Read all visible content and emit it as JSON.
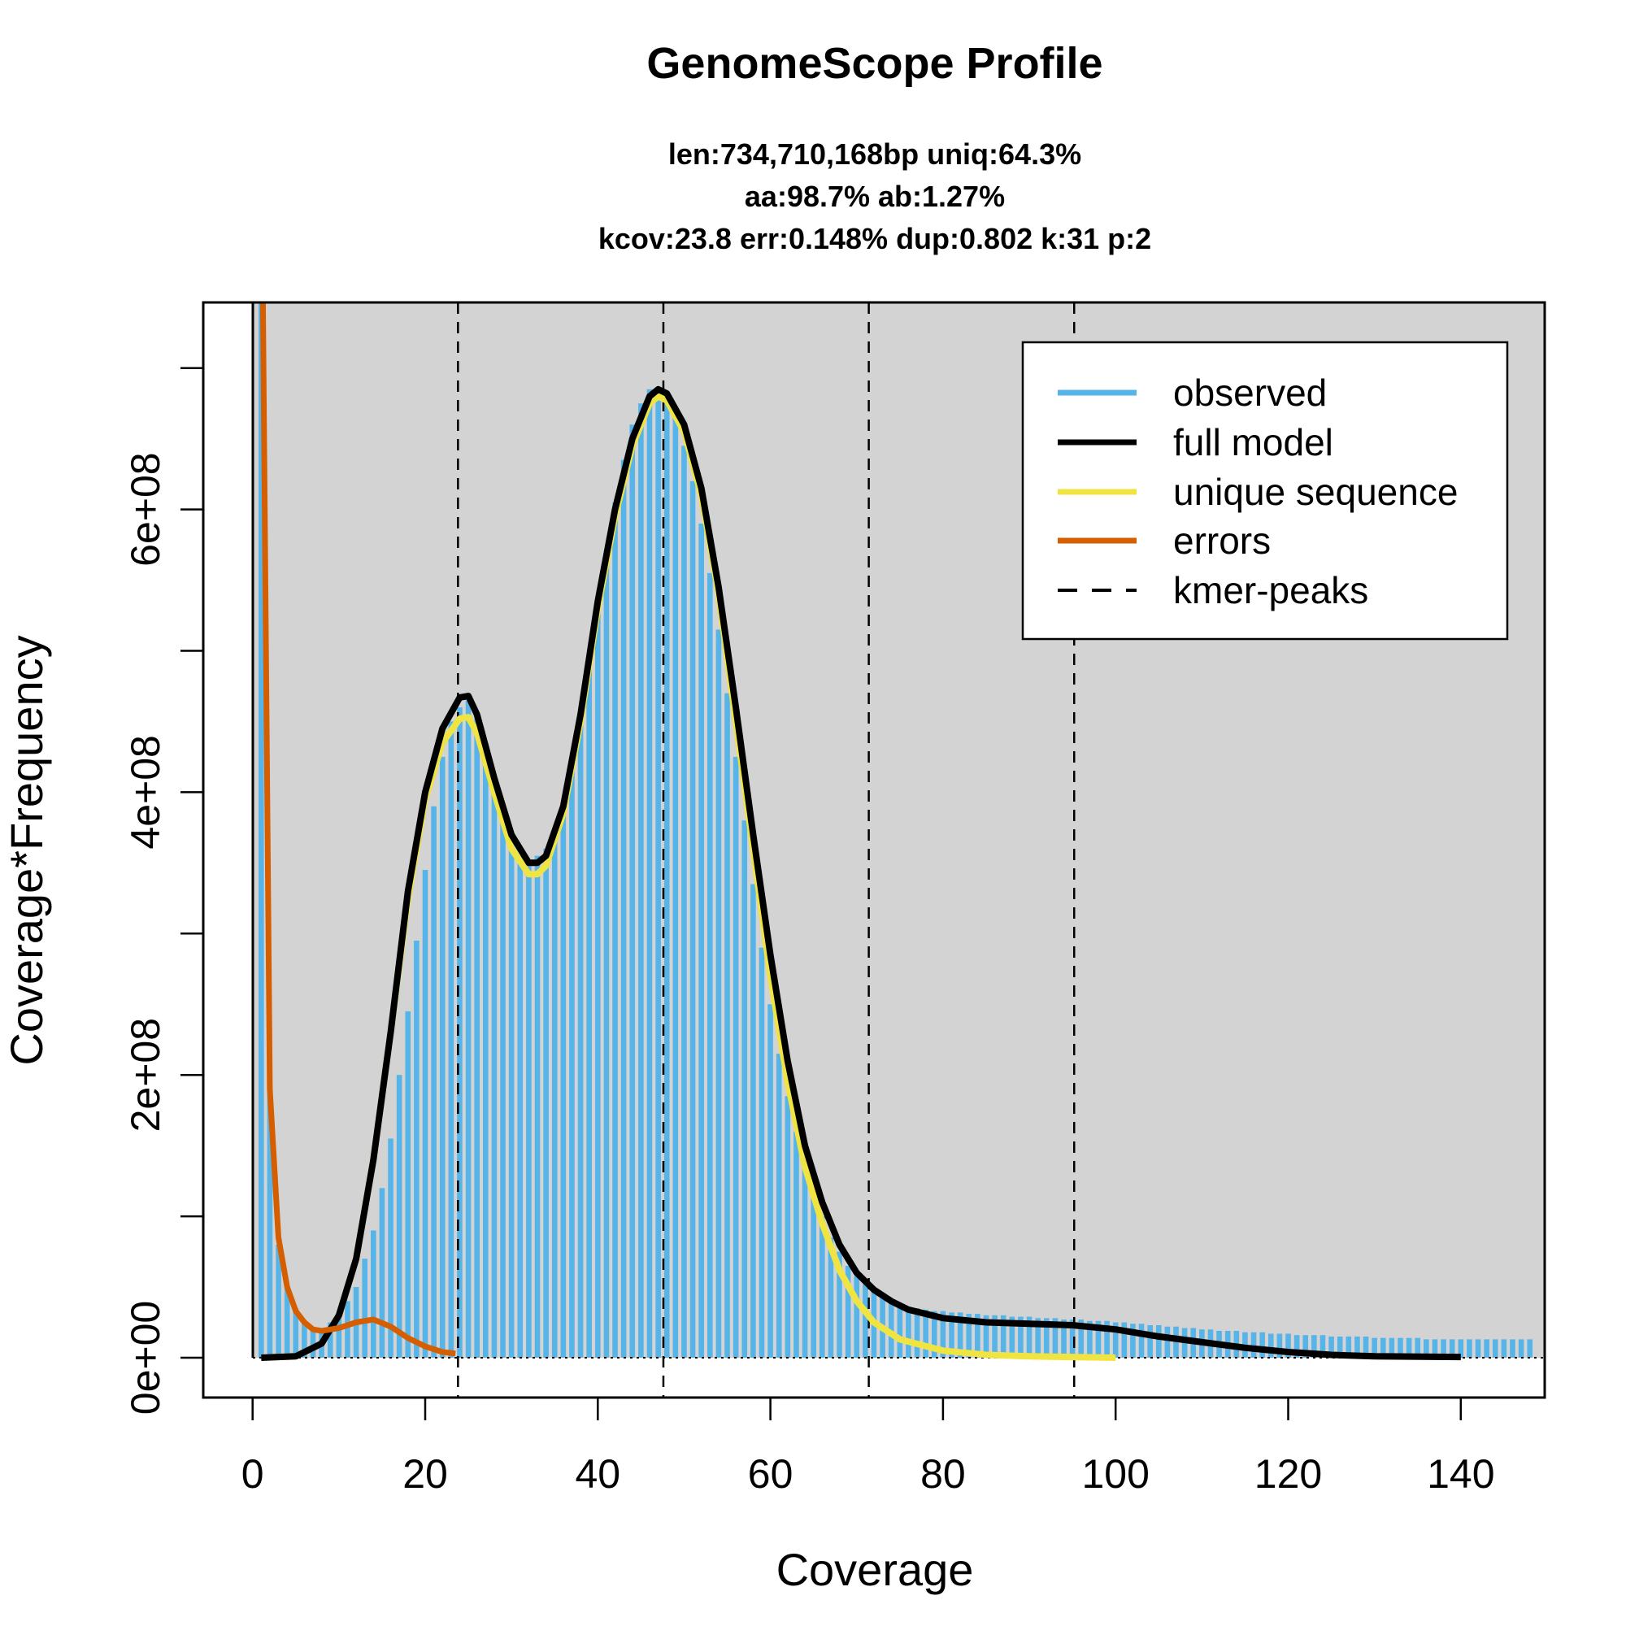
{
  "chart_data": {
    "type": "bar",
    "title": "GenomeScope Profile",
    "subtitle_lines": [
      "len:734,710,168bp uniq:64.3%",
      "aa:98.7% ab:1.27%",
      "kcov:23.8 err:0.148%  dup:0.802  k:31 p:2"
    ],
    "xlabel": "Coverage",
    "ylabel": "Coverage*Frequency",
    "xlim": [
      0,
      144
    ],
    "ylim": [
      0,
      720000000
    ],
    "x_ticks": [
      0,
      20,
      40,
      60,
      80,
      100,
      120,
      140
    ],
    "x_tick_labels": [
      "0",
      "20",
      "40",
      "60",
      "80",
      "100",
      "120",
      "140"
    ],
    "y_ticks": [
      0,
      100000000,
      200000000,
      300000000,
      400000000,
      500000000,
      600000000,
      700000000
    ],
    "y_tick_labels": [
      "0e+00",
      "",
      "2e+08",
      "",
      "4e+08",
      "",
      "6e+08",
      ""
    ],
    "y_unit": 100000000,
    "legend_position": "top-right",
    "colors": {
      "observed": "#56B4E9",
      "full_model": "#000000",
      "unique": "#F0E442",
      "errors": "#D55E00",
      "peaks": "#000000",
      "panel": "#D3D3D3"
    },
    "legend": [
      "observed",
      "full model",
      "unique sequence",
      "errors",
      "kmer-peaks"
    ],
    "kmer_peaks": [
      23.8,
      47.6,
      71.4,
      95.2
    ],
    "observed": {
      "x_start": 1,
      "values_1e8": [
        7.5,
        1.9,
        0.8,
        0.5,
        0.35,
        0.25,
        0.2,
        0.2,
        0.25,
        0.3,
        0.4,
        0.5,
        0.7,
        0.9,
        1.2,
        1.55,
        2.0,
        2.45,
        2.95,
        3.45,
        3.9,
        4.25,
        4.5,
        4.6,
        4.65,
        4.55,
        4.35,
        4.1,
        3.85,
        3.65,
        3.55,
        3.5,
        3.55,
        3.6,
        3.7,
        3.9,
        4.2,
        4.5,
        4.9,
        5.3,
        5.7,
        6.05,
        6.35,
        6.6,
        6.75,
        6.85,
        6.85,
        6.8,
        6.65,
        6.45,
        6.2,
        5.9,
        5.55,
        5.15,
        4.7,
        4.25,
        3.8,
        3.35,
        2.9,
        2.5,
        2.15,
        1.85,
        1.6,
        1.35,
        1.15,
        1.0,
        0.85,
        0.75,
        0.65,
        0.58,
        0.52,
        0.47,
        0.43,
        0.4,
        0.38,
        0.36,
        0.35,
        0.34,
        0.33,
        0.33,
        0.32,
        0.32,
        0.31,
        0.31,
        0.3,
        0.3,
        0.3,
        0.29,
        0.29,
        0.29,
        0.28,
        0.28,
        0.28,
        0.27,
        0.27,
        0.27,
        0.26,
        0.26,
        0.26,
        0.25,
        0.25,
        0.24,
        0.24,
        0.23,
        0.23,
        0.22,
        0.22,
        0.21,
        0.21,
        0.2,
        0.2,
        0.19,
        0.19,
        0.19,
        0.18,
        0.18,
        0.18,
        0.17,
        0.17,
        0.17,
        0.16,
        0.16,
        0.16,
        0.16,
        0.15,
        0.15,
        0.15,
        0.15,
        0.15,
        0.14,
        0.14,
        0.14,
        0.14,
        0.14,
        0.14,
        0.13,
        0.13,
        0.13,
        0.13,
        0.13,
        0.13,
        0.13,
        0.13,
        0.13,
        0.13,
        0.13,
        0.13,
        0.13
      ]
    },
    "full_model_1e8": [
      [
        1,
        0
      ],
      [
        5,
        0.01
      ],
      [
        8,
        0.1
      ],
      [
        10,
        0.3
      ],
      [
        12,
        0.7
      ],
      [
        14,
        1.4
      ],
      [
        16,
        2.3
      ],
      [
        18,
        3.3
      ],
      [
        20,
        4.0
      ],
      [
        22,
        4.45
      ],
      [
        24,
        4.67
      ],
      [
        25,
        4.68
      ],
      [
        26,
        4.55
      ],
      [
        28,
        4.1
      ],
      [
        30,
        3.7
      ],
      [
        32,
        3.5
      ],
      [
        33,
        3.5
      ],
      [
        34,
        3.55
      ],
      [
        36,
        3.9
      ],
      [
        38,
        4.55
      ],
      [
        40,
        5.35
      ],
      [
        42,
        6.0
      ],
      [
        44,
        6.5
      ],
      [
        46,
        6.8
      ],
      [
        47,
        6.85
      ],
      [
        48,
        6.82
      ],
      [
        50,
        6.6
      ],
      [
        52,
        6.15
      ],
      [
        54,
        5.45
      ],
      [
        56,
        4.6
      ],
      [
        58,
        3.7
      ],
      [
        60,
        2.85
      ],
      [
        62,
        2.1
      ],
      [
        64,
        1.5
      ],
      [
        66,
        1.1
      ],
      [
        68,
        0.8
      ],
      [
        70,
        0.6
      ],
      [
        72,
        0.48
      ],
      [
        74,
        0.4
      ],
      [
        76,
        0.34
      ],
      [
        80,
        0.28
      ],
      [
        85,
        0.25
      ],
      [
        90,
        0.24
      ],
      [
        95,
        0.23
      ],
      [
        100,
        0.2
      ],
      [
        105,
        0.15
      ],
      [
        110,
        0.11
      ],
      [
        115,
        0.07
      ],
      [
        120,
        0.04
      ],
      [
        125,
        0.02
      ],
      [
        130,
        0.01
      ],
      [
        140,
        0.005
      ],
      [
        150,
        0
      ]
    ],
    "unique_1e8": [
      [
        1,
        0
      ],
      [
        5,
        0.01
      ],
      [
        8,
        0.1
      ],
      [
        10,
        0.3
      ],
      [
        12,
        0.7
      ],
      [
        14,
        1.4
      ],
      [
        16,
        2.3
      ],
      [
        18,
        3.25
      ],
      [
        20,
        3.95
      ],
      [
        22,
        4.35
      ],
      [
        24,
        4.52
      ],
      [
        25,
        4.53
      ],
      [
        26,
        4.42
      ],
      [
        28,
        4.0
      ],
      [
        30,
        3.6
      ],
      [
        32,
        3.42
      ],
      [
        33,
        3.42
      ],
      [
        34,
        3.48
      ],
      [
        36,
        3.85
      ],
      [
        38,
        4.5
      ],
      [
        40,
        5.3
      ],
      [
        42,
        5.95
      ],
      [
        44,
        6.45
      ],
      [
        46,
        6.75
      ],
      [
        47,
        6.8
      ],
      [
        48,
        6.77
      ],
      [
        50,
        6.55
      ],
      [
        52,
        6.1
      ],
      [
        54,
        5.4
      ],
      [
        56,
        4.5
      ],
      [
        58,
        3.6
      ],
      [
        60,
        2.7
      ],
      [
        62,
        1.95
      ],
      [
        64,
        1.35
      ],
      [
        66,
        0.95
      ],
      [
        68,
        0.62
      ],
      [
        70,
        0.4
      ],
      [
        72,
        0.25
      ],
      [
        75,
        0.13
      ],
      [
        80,
        0.05
      ],
      [
        85,
        0.02
      ],
      [
        90,
        0.01
      ],
      [
        100,
        0
      ],
      [
        150,
        0
      ]
    ],
    "errors_1e8": [
      [
        1.2,
        7.5
      ],
      [
        2,
        1.9
      ],
      [
        3,
        0.85
      ],
      [
        4,
        0.5
      ],
      [
        5,
        0.33
      ],
      [
        6,
        0.25
      ],
      [
        7,
        0.2
      ],
      [
        8,
        0.19
      ],
      [
        10,
        0.21
      ],
      [
        12,
        0.25
      ],
      [
        14,
        0.27
      ],
      [
        16,
        0.22
      ],
      [
        18,
        0.14
      ],
      [
        20,
        0.08
      ],
      [
        22,
        0.04
      ],
      [
        23.5,
        0.03
      ]
    ]
  }
}
